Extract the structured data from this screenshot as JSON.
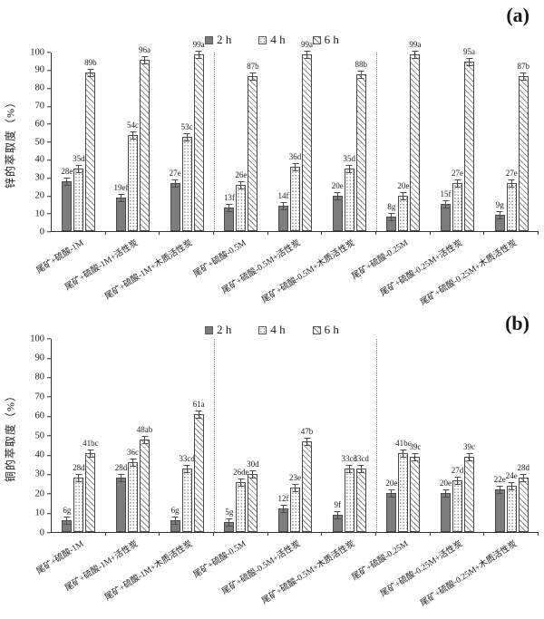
{
  "legend": {
    "position": "top-center",
    "items": [
      {
        "key": "h2",
        "label": "2 h"
      },
      {
        "key": "h4",
        "label": "4 h"
      },
      {
        "key": "h6",
        "label": "6 h"
      }
    ]
  },
  "colors": {
    "bar_2h_fill": "#7d7d7d",
    "bar_outline": "#4a4a4a",
    "axis": "#333333",
    "separator": "#8a8a8a",
    "background": "#ffffff"
  },
  "chart_data": [
    {
      "id": "a",
      "panel_label": "(a)",
      "type": "bar",
      "ylabel": "锌的萃取度（%）",
      "xlabel": "",
      "ylim": [
        0,
        100
      ],
      "yticks": [
        0,
        10,
        20,
        30,
        40,
        50,
        60,
        70,
        80,
        90,
        100
      ],
      "grid": false,
      "error_bars": true,
      "legend_position": "top-center",
      "separators_after": [
        3,
        6
      ],
      "categories": [
        "尾矿+硫酸-1M",
        "尾矿+硫酸-1M+活性炭",
        "尾矿+硫酸-1M+木质活性炭",
        "尾矿+硫酸-0.5M",
        "尾矿+硫酸-0.5M+活性炭",
        "尾矿+硫酸-0.5M+木质活性炭",
        "尾矿+硫酸-0.25M",
        "尾矿+硫酸-0.25M+活性炭",
        "尾矿+硫酸-0.25M+木质活性炭"
      ],
      "series": [
        {
          "key": "h2",
          "name": "2 h",
          "values": [
            28,
            19,
            27,
            13,
            14,
            20,
            8,
            15,
            9
          ],
          "labels": [
            "28e",
            "19ef",
            "27e",
            "13f",
            "14f",
            "20e",
            "8g",
            "15f",
            "9g"
          ]
        },
        {
          "key": "h4",
          "name": "4 h",
          "values": [
            35,
            54,
            53,
            26,
            36,
            35,
            20,
            27,
            27
          ],
          "labels": [
            "35d",
            "54c",
            "53c",
            "26e",
            "36d",
            "35d",
            "20e",
            "27e",
            "27e"
          ]
        },
        {
          "key": "h6",
          "name": "6 h",
          "values": [
            89,
            96,
            99,
            87,
            99,
            88,
            99,
            95,
            87
          ],
          "labels": [
            "89b",
            "96a",
            "99a",
            "87b",
            "99a",
            "88b",
            "99a",
            "95a",
            "87b"
          ]
        }
      ]
    },
    {
      "id": "b",
      "panel_label": "(b)",
      "type": "bar",
      "ylabel": "铜的萃取度（%）",
      "xlabel": "",
      "ylim": [
        0,
        100
      ],
      "yticks": [
        0,
        10,
        20,
        30,
        40,
        50,
        60,
        70,
        80,
        90,
        100
      ],
      "grid": false,
      "error_bars": true,
      "legend_position": "top-center",
      "separators_after": [
        3,
        6
      ],
      "categories": [
        "尾矿+硫酸-1M",
        "尾矿+硫酸-1M+活性炭",
        "尾矿+硫酸-1M+木质活性炭",
        "尾矿+硫酸-0.5M",
        "尾矿+硫酸-0.5M+活性炭",
        "尾矿+硫酸-0.5M+木质活性炭",
        "尾矿+硫酸-0.25M",
        "尾矿+硫酸-0.25M+活性炭",
        "尾矿+硫酸-0.25M+木质活性炭"
      ],
      "series": [
        {
          "key": "h2",
          "name": "2 h",
          "values": [
            6,
            28,
            6,
            5,
            12,
            9,
            20,
            20,
            22
          ],
          "labels": [
            "6g",
            "28d",
            "6g",
            "5g",
            "12f",
            "9f",
            "20e",
            "20e",
            "22e"
          ]
        },
        {
          "key": "h4",
          "name": "4 h",
          "values": [
            28,
            36,
            33,
            26,
            23,
            33,
            41,
            27,
            24
          ],
          "labels": [
            "28d",
            "36c",
            "33cd",
            "26de",
            "23e",
            "33cd",
            "41bc",
            "27d",
            "24e"
          ]
        },
        {
          "key": "h6",
          "name": "6 h",
          "values": [
            41,
            48,
            61,
            30,
            47,
            33,
            39,
            39,
            28
          ],
          "labels": [
            "41bc",
            "48ab",
            "61a",
            "30d",
            "47b",
            "33cd",
            "39c",
            "39c",
            "28d"
          ]
        }
      ]
    }
  ]
}
